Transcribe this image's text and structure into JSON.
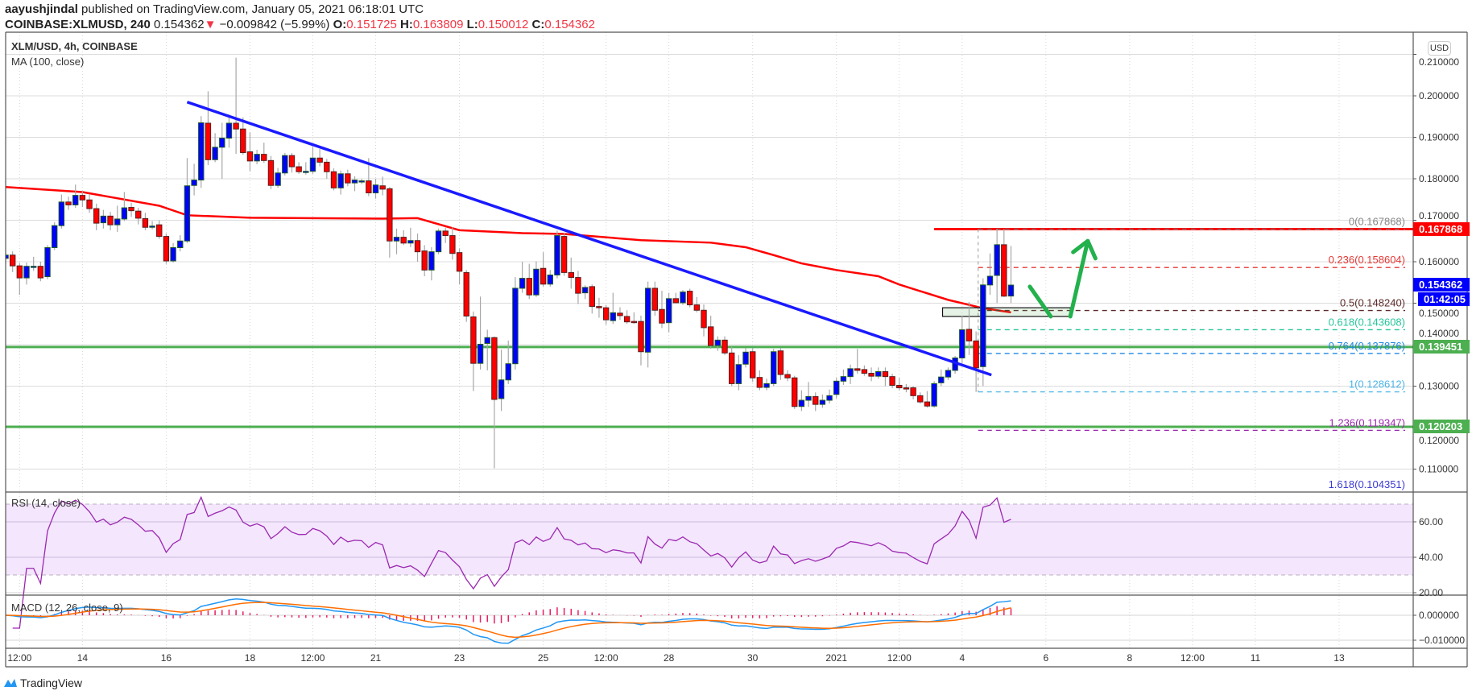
{
  "header": {
    "author": "aayushjindal",
    "published": " published on TradingView.com, January 05, 2021 06:18:01 UTC",
    "symbol": "COINBASE:XLMUSD, 240",
    "last": "0.154362",
    "change": "−0.009842 (−5.99%)",
    "o_label": "O:",
    "o": "0.151725",
    "h_label": "H:",
    "h": "0.163809",
    "l_label": "L:",
    "l": "0.150012",
    "c_label": "C:",
    "c": "0.154362"
  },
  "legend": {
    "title": "XLM/USD, 4h, COINBASE",
    "ma": "MA (100, close)",
    "rsi": "RSI (14, close)",
    "macd": "MACD (12, 26, close, 9)"
  },
  "price_axis": {
    "currency": "USD",
    "badges": {
      "resistance": "0.167868",
      "last_price": "0.154362",
      "countdown": "01:42:05",
      "support_1": "0.139451",
      "support_2": "0.120203"
    }
  },
  "footer": {
    "brand": "TradingView"
  },
  "colors": {
    "up": "#0000ff",
    "down": "#ff0000",
    "ma": "#ff0000",
    "trendline": "#1a1aff",
    "support": "#4caf50",
    "resistance": "#ff0000",
    "rsi": "#9c27b0",
    "macd": "#2196f3",
    "signal": "#ff6d00",
    "histogram": "#e91e63",
    "arrow": "#22b14c"
  },
  "chart_data": {
    "type": "candlestick",
    "title": "XLM/USD, 4h, COINBASE",
    "first_bar_time": "2020-12-12T04:00",
    "interval_hours": 4,
    "ylim": [
      0.1,
      0.215
    ],
    "price_ticks": [
      0.11,
      0.12,
      0.13,
      0.14,
      0.15,
      0.16,
      0.17,
      0.18,
      0.19,
      0.2,
      0.21
    ],
    "price_tick_labels": [
      "0.110000",
      "0.120000",
      "0.130000",
      "0.140000",
      "0.150000",
      "0.160000",
      "0.170000",
      "0.180000",
      "0.190000",
      "0.200000",
      "0.210000"
    ],
    "time_ticks": [
      {
        "label": "12:00",
        "time": "2020-12-12T12:00"
      },
      {
        "label": "14",
        "time": "2020-12-14T00:00"
      },
      {
        "label": "16",
        "time": "2020-12-16T00:00"
      },
      {
        "label": "18",
        "time": "2020-12-18T00:00"
      },
      {
        "label": "12:00",
        "time": "2020-12-19T12:00"
      },
      {
        "label": "21",
        "time": "2020-12-21T00:00"
      },
      {
        "label": "23",
        "time": "2020-12-23T00:00"
      },
      {
        "label": "25",
        "time": "2020-12-25T00:00"
      },
      {
        "label": "12:00",
        "time": "2020-12-26T12:00"
      },
      {
        "label": "28",
        "time": "2020-12-28T00:00"
      },
      {
        "label": "30",
        "time": "2020-12-30T00:00"
      },
      {
        "label": "2021",
        "time": "2021-01-01T00:00"
      },
      {
        "label": "12:00",
        "time": "2021-01-02T12:00"
      },
      {
        "label": "4",
        "time": "2021-01-04T00:00"
      },
      {
        "label": "6",
        "time": "2021-01-06T00:00"
      },
      {
        "label": "8",
        "time": "2021-01-08T00:00"
      },
      {
        "label": "12:00",
        "time": "2021-01-09T12:00"
      },
      {
        "label": "11",
        "time": "2021-01-11T00:00"
      },
      {
        "label": "13",
        "time": "2021-01-13T00:00"
      }
    ],
    "ohlc": [
      [
        0.1608,
        0.1625,
        0.1595,
        0.1616
      ],
      [
        0.1616,
        0.1625,
        0.1575,
        0.159
      ],
      [
        0.159,
        0.1597,
        0.152,
        0.1561
      ],
      [
        0.1561,
        0.1598,
        0.1545,
        0.1589
      ],
      [
        0.1589,
        0.1612,
        0.1578,
        0.1589
      ],
      [
        0.1589,
        0.16,
        0.1553,
        0.1561
      ],
      [
        0.1564,
        0.164,
        0.1558,
        0.1634
      ],
      [
        0.1634,
        0.1695,
        0.1628,
        0.1687
      ],
      [
        0.1687,
        0.1762,
        0.168,
        0.1744
      ],
      [
        0.1744,
        0.1757,
        0.1725,
        0.1737
      ],
      [
        0.1737,
        0.1786,
        0.173,
        0.176
      ],
      [
        0.176,
        0.177,
        0.1732,
        0.1749
      ],
      [
        0.1749,
        0.1762,
        0.1718,
        0.1728
      ],
      [
        0.1728,
        0.174,
        0.1676,
        0.1693
      ],
      [
        0.1694,
        0.1725,
        0.168,
        0.171
      ],
      [
        0.171,
        0.172,
        0.1676,
        0.1689
      ],
      [
        0.1689,
        0.1735,
        0.1672,
        0.1703
      ],
      [
        0.1703,
        0.1768,
        0.1698,
        0.173
      ],
      [
        0.1731,
        0.1742,
        0.1708,
        0.1723
      ],
      [
        0.1722,
        0.173,
        0.169,
        0.1705
      ],
      [
        0.1704,
        0.1718,
        0.1676,
        0.1683
      ],
      [
        0.1686,
        0.1698,
        0.1678,
        0.1686
      ],
      [
        0.1689,
        0.17,
        0.1655,
        0.1661
      ],
      [
        0.1661,
        0.1668,
        0.1595,
        0.1602
      ],
      [
        0.1602,
        0.1645,
        0.1598,
        0.1634
      ],
      [
        0.1634,
        0.1664,
        0.1625,
        0.165
      ],
      [
        0.165,
        0.185,
        0.1645,
        0.1783
      ],
      [
        0.1784,
        0.1836,
        0.176,
        0.1797
      ],
      [
        0.1797,
        0.1951,
        0.1778,
        0.1935
      ],
      [
        0.1934,
        0.2011,
        0.1833,
        0.1846
      ],
      [
        0.1846,
        0.191,
        0.184,
        0.1876
      ],
      [
        0.1876,
        0.1935,
        0.18,
        0.1898
      ],
      [
        0.1898,
        0.1955,
        0.1875,
        0.1934
      ],
      [
        0.1934,
        0.2092,
        0.186,
        0.192
      ],
      [
        0.192,
        0.1948,
        0.1858,
        0.1863
      ],
      [
        0.1865,
        0.1912,
        0.1818,
        0.1843
      ],
      [
        0.1843,
        0.187,
        0.1835,
        0.1859
      ],
      [
        0.1859,
        0.1887,
        0.1838,
        0.1844
      ],
      [
        0.1844,
        0.1855,
        0.1775,
        0.1784
      ],
      [
        0.1784,
        0.1826,
        0.1778,
        0.1814
      ],
      [
        0.1814,
        0.1862,
        0.1808,
        0.1856
      ],
      [
        0.1856,
        0.1862,
        0.1815,
        0.1829
      ],
      [
        0.1829,
        0.184,
        0.1812,
        0.1817
      ],
      [
        0.1818,
        0.184,
        0.181,
        0.1818
      ],
      [
        0.1818,
        0.1878,
        0.1812,
        0.185
      ],
      [
        0.185,
        0.1872,
        0.183,
        0.184
      ],
      [
        0.184,
        0.1848,
        0.18,
        0.1817
      ],
      [
        0.1817,
        0.1825,
        0.1772,
        0.1778
      ],
      [
        0.1778,
        0.182,
        0.1762,
        0.1812
      ],
      [
        0.1812,
        0.1822,
        0.1782,
        0.179
      ],
      [
        0.179,
        0.1806,
        0.177,
        0.1797
      ],
      [
        0.1795,
        0.18,
        0.1787,
        0.1795
      ],
      [
        0.1795,
        0.185,
        0.1758,
        0.1766
      ],
      [
        0.1766,
        0.18,
        0.1752,
        0.1785
      ],
      [
        0.1783,
        0.1805,
        0.176,
        0.1775
      ],
      [
        0.1776,
        0.178,
        0.161,
        0.165
      ],
      [
        0.165,
        0.168,
        0.1618,
        0.1659
      ],
      [
        0.1659,
        0.1676,
        0.164,
        0.1645
      ],
      [
        0.1645,
        0.1682,
        0.1635,
        0.1651
      ],
      [
        0.1651,
        0.1668,
        0.16,
        0.1624
      ],
      [
        0.1626,
        0.164,
        0.1565,
        0.158
      ],
      [
        0.158,
        0.1635,
        0.1555,
        0.1624
      ],
      [
        0.1624,
        0.168,
        0.1618,
        0.1674
      ],
      [
        0.1674,
        0.1682,
        0.1645,
        0.1663
      ],
      [
        0.1663,
        0.1683,
        0.1605,
        0.162
      ],
      [
        0.1622,
        0.1632,
        0.1545,
        0.1577
      ],
      [
        0.1574,
        0.158,
        0.1455,
        0.1469
      ],
      [
        0.1467,
        0.148,
        0.1288,
        0.1355
      ],
      [
        0.1355,
        0.1516,
        0.134,
        0.1401
      ],
      [
        0.1403,
        0.1436,
        0.1338,
        0.1417
      ],
      [
        0.1417,
        0.142,
        0.1102,
        0.1268
      ],
      [
        0.127,
        0.1388,
        0.124,
        0.1315
      ],
      [
        0.1315,
        0.141,
        0.1305,
        0.1354
      ],
      [
        0.1354,
        0.1563,
        0.134,
        0.1536
      ],
      [
        0.1536,
        0.16,
        0.1525,
        0.156
      ],
      [
        0.156,
        0.1595,
        0.151,
        0.152
      ],
      [
        0.152,
        0.1601,
        0.1515,
        0.1582
      ],
      [
        0.1584,
        0.1623,
        0.154,
        0.1546
      ],
      [
        0.1546,
        0.158,
        0.154,
        0.1568
      ],
      [
        0.1568,
        0.1675,
        0.156,
        0.1663
      ],
      [
        0.1661,
        0.167,
        0.1566,
        0.1574
      ],
      [
        0.1574,
        0.161,
        0.1535,
        0.1562
      ],
      [
        0.1562,
        0.1578,
        0.1498,
        0.1524
      ],
      [
        0.1525,
        0.1543,
        0.151,
        0.1538
      ],
      [
        0.154,
        0.1545,
        0.1475,
        0.1492
      ],
      [
        0.1492,
        0.1513,
        0.1465,
        0.1489
      ],
      [
        0.1489,
        0.1496,
        0.1448,
        0.146
      ],
      [
        0.1458,
        0.1525,
        0.145,
        0.1477
      ],
      [
        0.1476,
        0.149,
        0.146,
        0.147
      ],
      [
        0.1468,
        0.1483,
        0.145,
        0.1455
      ],
      [
        0.1456,
        0.1478,
        0.145,
        0.1455
      ],
      [
        0.1456,
        0.147,
        0.135,
        0.1383
      ],
      [
        0.1382,
        0.1552,
        0.1345,
        0.1536
      ],
      [
        0.1536,
        0.1552,
        0.147,
        0.1483
      ],
      [
        0.1485,
        0.153,
        0.144,
        0.1452
      ],
      [
        0.1453,
        0.1525,
        0.143,
        0.1511
      ],
      [
        0.1511,
        0.1525,
        0.15,
        0.1501
      ],
      [
        0.1501,
        0.1532,
        0.1496,
        0.1527
      ],
      [
        0.1529,
        0.1535,
        0.149,
        0.1496
      ],
      [
        0.1496,
        0.1515,
        0.1478,
        0.1483
      ],
      [
        0.1483,
        0.1497,
        0.142,
        0.1441
      ],
      [
        0.1443,
        0.147,
        0.139,
        0.1398
      ],
      [
        0.1398,
        0.142,
        0.1385,
        0.1411
      ],
      [
        0.1411,
        0.142,
        0.1375,
        0.138
      ],
      [
        0.138,
        0.1395,
        0.13,
        0.1306
      ],
      [
        0.1306,
        0.1375,
        0.129,
        0.1352
      ],
      [
        0.1353,
        0.1392,
        0.1345,
        0.1382
      ],
      [
        0.1383,
        0.1392,
        0.131,
        0.132
      ],
      [
        0.1321,
        0.1338,
        0.129,
        0.1297
      ],
      [
        0.1297,
        0.1318,
        0.129,
        0.1306
      ],
      [
        0.1306,
        0.139,
        0.13,
        0.1383
      ],
      [
        0.1385,
        0.1392,
        0.1315,
        0.1328
      ],
      [
        0.1328,
        0.1338,
        0.1312,
        0.132
      ],
      [
        0.132,
        0.1325,
        0.1245,
        0.1251
      ],
      [
        0.1251,
        0.129,
        0.124,
        0.1266
      ],
      [
        0.1266,
        0.131,
        0.125,
        0.1275
      ],
      [
        0.1275,
        0.1285,
        0.124,
        0.1256
      ],
      [
        0.1256,
        0.128,
        0.1248,
        0.1266
      ],
      [
        0.1266,
        0.1292,
        0.1258,
        0.1277
      ],
      [
        0.128,
        0.132,
        0.127,
        0.1312
      ],
      [
        0.1312,
        0.134,
        0.1303,
        0.1323
      ],
      [
        0.1323,
        0.1352,
        0.1305,
        0.1342
      ],
      [
        0.1342,
        0.139,
        0.133,
        0.1338
      ],
      [
        0.134,
        0.135,
        0.1325,
        0.1331
      ],
      [
        0.1331,
        0.1345,
        0.1312,
        0.1324
      ],
      [
        0.1324,
        0.1345,
        0.1318,
        0.1335
      ],
      [
        0.1335,
        0.1345,
        0.13,
        0.1323
      ],
      [
        0.1323,
        0.133,
        0.1295,
        0.1302
      ],
      [
        0.1302,
        0.132,
        0.129,
        0.1296
      ],
      [
        0.1296,
        0.1305,
        0.1285,
        0.1294
      ],
      [
        0.1296,
        0.13,
        0.1268,
        0.1277
      ],
      [
        0.1277,
        0.1285,
        0.1258,
        0.1262
      ],
      [
        0.1262,
        0.1288,
        0.1248,
        0.1252
      ],
      [
        0.1252,
        0.1312,
        0.1248,
        0.1306
      ],
      [
        0.1308,
        0.134,
        0.13,
        0.1322
      ],
      [
        0.1322,
        0.1345,
        0.1315,
        0.1338
      ],
      [
        0.1338,
        0.1373,
        0.133,
        0.1368
      ],
      [
        0.1368,
        0.147,
        0.1355,
        0.1436
      ],
      [
        0.1437,
        0.1503,
        0.1375,
        0.1409
      ],
      [
        0.1409,
        0.1432,
        0.1286,
        0.1344
      ],
      [
        0.1347,
        0.156,
        0.13,
        0.1544
      ],
      [
        0.1544,
        0.162,
        0.152,
        0.1565
      ],
      [
        0.1567,
        0.1679,
        0.15,
        0.1641
      ],
      [
        0.1641,
        0.1679,
        0.1515,
        0.1517
      ],
      [
        0.151725,
        0.163809,
        0.150012,
        0.154362
      ]
    ],
    "ma100": [
      [
        0,
        0.178
      ],
      [
        11,
        0.1768
      ],
      [
        22,
        0.1735
      ],
      [
        26,
        0.1712
      ],
      [
        35,
        0.1706
      ],
      [
        54,
        0.1704
      ],
      [
        59,
        0.1705
      ],
      [
        65,
        0.1676
      ],
      [
        74,
        0.1669
      ],
      [
        80,
        0.1667
      ],
      [
        91,
        0.1652
      ],
      [
        101,
        0.1646
      ],
      [
        106,
        0.1635
      ],
      [
        110,
        0.1616
      ],
      [
        114,
        0.1596
      ],
      [
        119,
        0.158
      ],
      [
        125,
        0.1565
      ],
      [
        128,
        0.1545
      ],
      [
        135,
        0.1508
      ],
      [
        140,
        0.1488
      ],
      [
        144,
        0.1478
      ]
    ],
    "trendline": [
      [
        26,
        0.1985
      ],
      [
        141.2,
        0.1327
      ]
    ],
    "horizontal_lines": [
      {
        "name": "support-1",
        "price": 0.139451
      },
      {
        "name": "support-2",
        "price": 0.120203
      },
      {
        "name": "resistance",
        "price": 0.167868,
        "from_bar": 133
      }
    ],
    "fibonacci": {
      "from_bar": 139.3,
      "high": 0.167868,
      "low": 0.128612,
      "levels": [
        {
          "level": "0",
          "price": "0.167868",
          "color": "#888888"
        },
        {
          "level": "0.236",
          "price": "0.158604",
          "color": "#e53935"
        },
        {
          "level": "0.5",
          "price": "0.148240",
          "color": "#5d2a2a"
        },
        {
          "level": "0.618",
          "price": "0.143608",
          "color": "#26c59a"
        },
        {
          "level": "0.764",
          "price": "0.137876",
          "color": "#1e88e5"
        },
        {
          "level": "1",
          "price": "0.128612",
          "color": "#4cb6e8"
        },
        {
          "level": "1.236",
          "price": "0.119347",
          "color": "#9c27b0"
        },
        {
          "level": "1.618",
          "price": "0.104351",
          "color": "#3b3bd6"
        }
      ]
    },
    "zone": {
      "from_bar": 134.2,
      "to_bar": 152.5,
      "top": 0.1489,
      "bottom": 0.1468
    },
    "arrows": {
      "down_stroke": [
        [
          146.7,
          0.154
        ],
        [
          149.7,
          0.1468
        ]
      ],
      "up_arrow": [
        [
          152.5,
          0.1468
        ],
        [
          155.0,
          0.165
        ]
      ],
      "head_left": [
        152.9,
        0.1623
      ],
      "head_right": [
        156.1,
        0.1608
      ]
    },
    "rsi": {
      "period": 14,
      "ticks": [
        20,
        40,
        60
      ],
      "tick_labels": [
        "20.00",
        "40.00",
        "60.00"
      ],
      "band": [
        30,
        70
      ]
    },
    "macd": {
      "fast": 12,
      "slow": 26,
      "signal": 9,
      "ticks": [
        0,
        -0.01
      ],
      "tick_labels": [
        "0.000000",
        "−0.010000"
      ]
    }
  }
}
